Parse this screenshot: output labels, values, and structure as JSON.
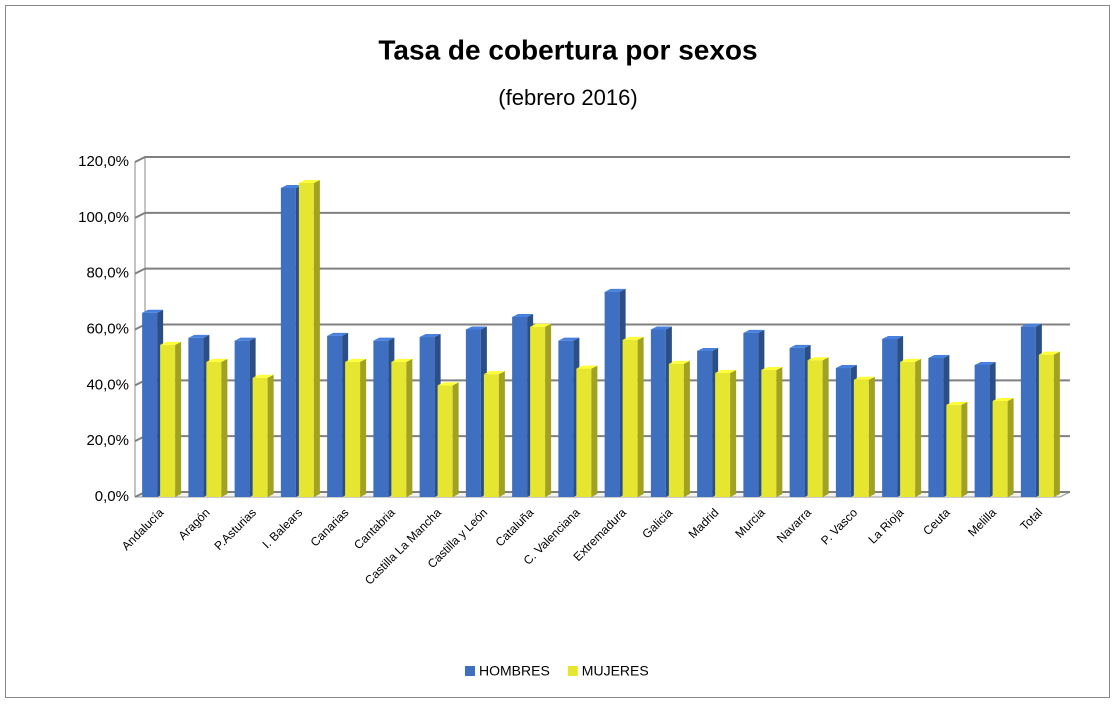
{
  "chart_data": {
    "type": "bar",
    "title": "Tasa de  cobertura por sexos",
    "subtitle": "(febrero 2016)",
    "categories": [
      "Andalucía",
      "Aragón",
      "P.Asturias",
      "I. Balears",
      "Canarias",
      "Cantabria",
      "Castilla La Mancha",
      "Castilla y León",
      "Cataluña",
      "C. Valenciana",
      "Extremadura",
      "Galicia",
      "Madrid",
      "Murcia",
      "Navarra",
      "P. Vasco",
      "La Rioja",
      "Ceuta",
      "Melilla",
      "Total"
    ],
    "series": [
      {
        "name": "HOMBRES",
        "color": "#3e6fc0",
        "values": [
          66.0,
          57.0,
          56.0,
          110.7,
          57.7,
          56.0,
          57.3,
          60.0,
          64.5,
          56.0,
          73.5,
          60.0,
          52.3,
          58.8,
          53.4,
          46.2,
          56.6,
          49.8,
          47.3,
          61.0
        ]
      },
      {
        "name": "MUJERES",
        "color": "#e6e630",
        "values": [
          54.5,
          48.4,
          42.7,
          112.5,
          48.4,
          48.4,
          40.0,
          44.0,
          61.0,
          46.0,
          56.3,
          47.7,
          44.4,
          45.5,
          49.0,
          42.0,
          48.4,
          33.0,
          34.4,
          51.0
        ]
      }
    ],
    "ylim": [
      0,
      120
    ],
    "yticks": [
      {
        "value": 0,
        "label": "0,0%"
      },
      {
        "value": 20,
        "label": "20,0%"
      },
      {
        "value": 40,
        "label": "40,0%"
      },
      {
        "value": 60,
        "label": "60,0%"
      },
      {
        "value": 80,
        "label": "80,0%"
      },
      {
        "value": 100,
        "label": "100,0%"
      },
      {
        "value": 120,
        "label": "120,0%"
      }
    ],
    "grid": true,
    "legend": "bottom"
  }
}
